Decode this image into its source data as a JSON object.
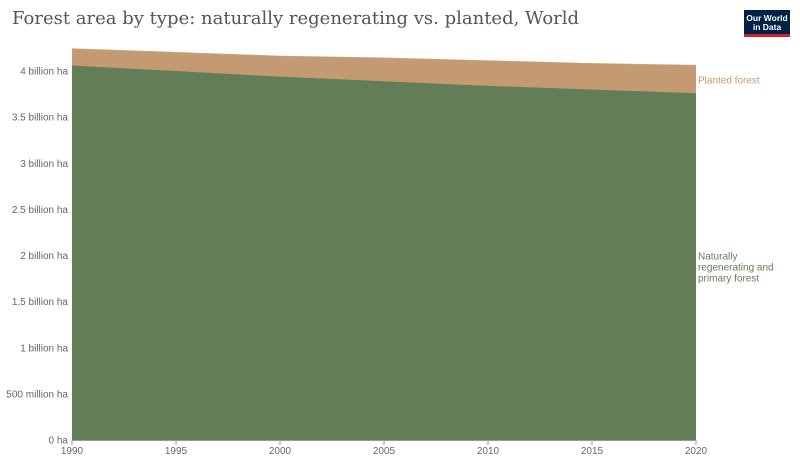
{
  "header": {
    "title": "Forest area by type: naturally regenerating vs. planted, World",
    "logo_line1": "Our World",
    "logo_line2": "in Data"
  },
  "chart_data": {
    "type": "area",
    "stacked": true,
    "x": [
      1990,
      1995,
      2000,
      2005,
      2010,
      2015,
      2020
    ],
    "series": [
      {
        "name": "Naturally regenerating and primary forest",
        "label_lines": [
          "Naturally",
          "regenerating and",
          "primary forest"
        ],
        "color": "#637e57",
        "values": [
          4.06,
          4.0,
          3.94,
          3.89,
          3.84,
          3.8,
          3.76
        ]
      },
      {
        "name": "Planted forest",
        "label_lines": [
          "Planted forest"
        ],
        "color": "#c49a73",
        "values": [
          0.18,
          0.2,
          0.22,
          0.25,
          0.27,
          0.28,
          0.3
        ]
      }
    ],
    "ylim": [
      0,
      4.25
    ],
    "yticks": [
      0,
      0.5,
      1,
      1.5,
      2,
      2.5,
      3,
      3.5,
      4
    ],
    "ytick_labels": [
      "0 ha",
      "500 million ha",
      "1 billion ha",
      "1.5 billion ha",
      "2 billion ha",
      "2.5 billion ha",
      "3 billion ha",
      "3.5 billion ha",
      "4 billion ha"
    ],
    "xticks": [
      1990,
      1995,
      2000,
      2005,
      2010,
      2015,
      2020
    ],
    "xlim": [
      1990,
      2020
    ],
    "grid": "horizontal-dashed",
    "legend": "right-inline"
  }
}
